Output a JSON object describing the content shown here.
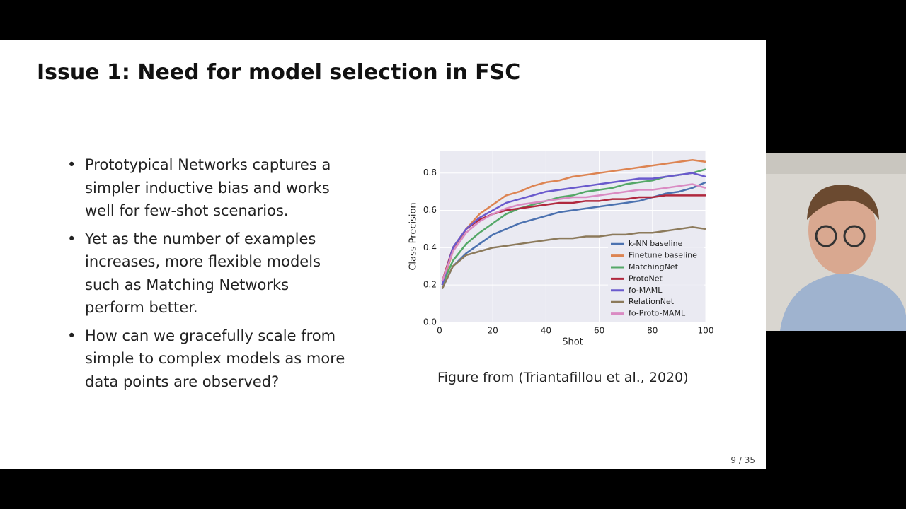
{
  "slide": {
    "title": "Issue 1: Need for model selection in FSC",
    "bullets": [
      "Prototypical Networks captures a simpler inductive bias and works well for few-shot scenarios.",
      "Yet as the number of examples increases, more flexible models such as Matching Networks perform better.",
      "How can we gracefully scale from simple to complex models as more data points are observed?"
    ],
    "caption": "Figure from (Triantafillou et al., 2020)",
    "page_number": "9 / 35"
  },
  "chart_data": {
    "type": "line",
    "x_label": "Shot",
    "y_label": "Class Precision",
    "x": [
      1,
      5,
      10,
      15,
      20,
      25,
      30,
      35,
      40,
      45,
      50,
      55,
      60,
      65,
      70,
      75,
      80,
      85,
      90,
      95,
      100
    ],
    "xlim": [
      0,
      100
    ],
    "xticks": [
      0,
      20,
      40,
      60,
      80,
      100
    ],
    "ylim": [
      0,
      0.92
    ],
    "yticks": [
      {
        "value": 0,
        "label": "0.0"
      },
      0.2,
      0.4,
      0.6,
      0.8
    ],
    "grid": true,
    "legend": "lower right",
    "series": [
      {
        "name": "k-NN baseline",
        "color": "#4c72b0",
        "values": [
          0.18,
          0.3,
          0.37,
          0.42,
          0.47,
          0.5,
          0.53,
          0.55,
          0.57,
          0.59,
          0.6,
          0.61,
          0.62,
          0.63,
          0.64,
          0.65,
          0.67,
          0.69,
          0.7,
          0.72,
          0.75
        ]
      },
      {
        "name": "Finetune baseline",
        "color": "#dd8452",
        "values": [
          0.2,
          0.38,
          0.5,
          0.58,
          0.63,
          0.68,
          0.7,
          0.73,
          0.75,
          0.76,
          0.78,
          0.79,
          0.8,
          0.81,
          0.82,
          0.83,
          0.84,
          0.85,
          0.86,
          0.87,
          0.86
        ]
      },
      {
        "name": "MatchingNet",
        "color": "#55a868",
        "values": [
          0.2,
          0.33,
          0.42,
          0.48,
          0.53,
          0.58,
          0.61,
          0.63,
          0.65,
          0.67,
          0.68,
          0.7,
          0.71,
          0.72,
          0.74,
          0.75,
          0.76,
          0.78,
          0.79,
          0.8,
          0.82
        ]
      },
      {
        "name": "ProtoNet",
        "color": "#b0283e",
        "values": [
          0.22,
          0.4,
          0.5,
          0.55,
          0.58,
          0.6,
          0.61,
          0.62,
          0.63,
          0.64,
          0.64,
          0.65,
          0.65,
          0.66,
          0.66,
          0.67,
          0.67,
          0.68,
          0.68,
          0.68,
          0.68
        ]
      },
      {
        "name": "fo-MAML",
        "color": "#6a5acd",
        "values": [
          0.2,
          0.4,
          0.5,
          0.56,
          0.6,
          0.64,
          0.66,
          0.68,
          0.7,
          0.71,
          0.72,
          0.73,
          0.74,
          0.75,
          0.76,
          0.77,
          0.77,
          0.78,
          0.79,
          0.8,
          0.78
        ]
      },
      {
        "name": "RelationNet",
        "color": "#8c7a5b",
        "values": [
          0.18,
          0.3,
          0.36,
          0.38,
          0.4,
          0.41,
          0.42,
          0.43,
          0.44,
          0.45,
          0.45,
          0.46,
          0.46,
          0.47,
          0.47,
          0.48,
          0.48,
          0.49,
          0.5,
          0.51,
          0.5
        ]
      },
      {
        "name": "fo-Proto-MAML",
        "color": "#da8bc3",
        "values": [
          0.22,
          0.38,
          0.48,
          0.54,
          0.58,
          0.61,
          0.63,
          0.64,
          0.65,
          0.66,
          0.67,
          0.67,
          0.68,
          0.69,
          0.7,
          0.71,
          0.71,
          0.72,
          0.73,
          0.74,
          0.72
        ]
      }
    ]
  }
}
